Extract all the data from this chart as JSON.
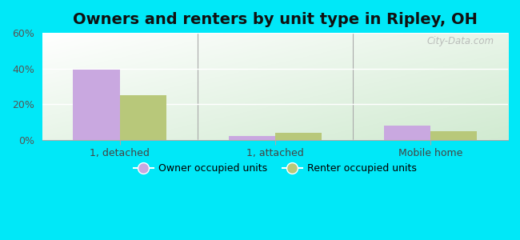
{
  "title": "Owners and renters by unit type in Ripley, OH",
  "categories": [
    "1, detached",
    "1, attached",
    "Mobile home"
  ],
  "owner_values": [
    39.5,
    2.0,
    8.0
  ],
  "renter_values": [
    25.0,
    4.0,
    5.0
  ],
  "owner_color": "#c9a8e0",
  "renter_color": "#b8c87a",
  "ylim": [
    0,
    60
  ],
  "yticks": [
    0,
    20,
    40,
    60
  ],
  "ytick_labels": [
    "0%",
    "20%",
    "40%",
    "60%"
  ],
  "bg_color_topleft": "#cce8cc",
  "bg_color_topright": "#f0f8f0",
  "bg_color_bottom": "#d8eedd",
  "outer_bg": "#00e8f8",
  "bar_width": 0.3,
  "legend_owner": "Owner occupied units",
  "legend_renter": "Renter occupied units",
  "title_fontsize": 14,
  "watermark": "City-Data.com"
}
